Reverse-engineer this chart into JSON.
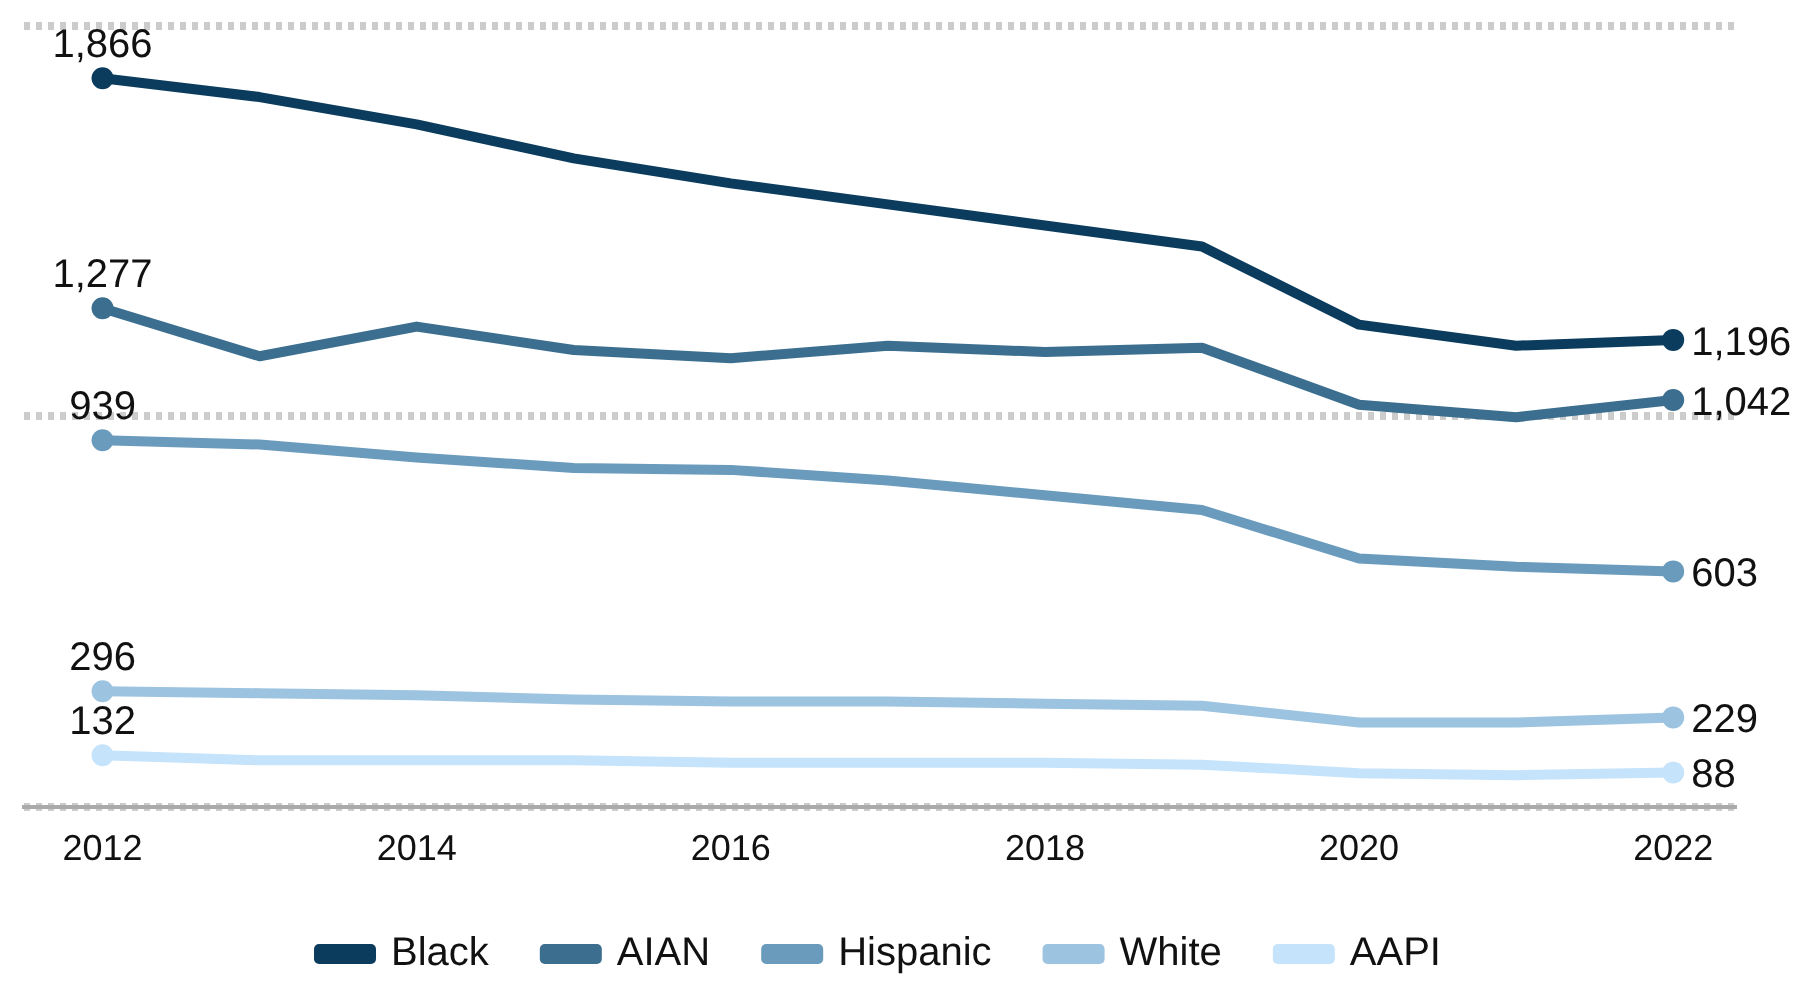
{
  "chart_data": {
    "type": "line",
    "x": [
      2012,
      2013,
      2014,
      2015,
      2016,
      2017,
      2018,
      2019,
      2020,
      2021,
      2022
    ],
    "xlim": [
      2011.5,
      2022.4
    ],
    "xticks": [
      2012,
      2014,
      2016,
      2018,
      2020,
      2022
    ],
    "ylim": [
      0,
      2000
    ],
    "yticks": [
      {
        "value": 0,
        "label": null
      },
      {
        "value": 1000,
        "label": null
      },
      {
        "value": 2000,
        "label": null
      }
    ],
    "tick_labels": "x",
    "grid": "y",
    "legend": "bottom",
    "line_style": "solid",
    "series": [
      {
        "name": "Black",
        "color": "#0b3c5d",
        "values": [
          1866,
          1818,
          1748,
          1661,
          1597,
          1543,
          1489,
          1435,
          1235,
          1181,
          1196
        ],
        "value_labels": [
          "1,866",
          null,
          null,
          null,
          null,
          null,
          null,
          null,
          null,
          null,
          "1,196"
        ]
      },
      {
        "name": "AIAN",
        "color": "#3b6e8f",
        "values": [
          1277,
          1154,
          1230,
          1170,
          1149,
          1181,
          1165,
          1176,
          1030,
          998,
          1042
        ],
        "value_labels": [
          "1,277",
          null,
          null,
          null,
          null,
          null,
          null,
          null,
          null,
          null,
          "1,042"
        ]
      },
      {
        "name": "Hispanic",
        "color": "#6a9bbd",
        "values": [
          939,
          928,
          895,
          868,
          863,
          836,
          798,
          760,
          636,
          615,
          603
        ],
        "value_labels": [
          "939",
          null,
          null,
          null,
          null,
          null,
          null,
          null,
          null,
          null,
          "603"
        ]
      },
      {
        "name": "White",
        "color": "#9cc3e0",
        "values": [
          296,
          291,
          286,
          275,
          270,
          270,
          264,
          259,
          216,
          216,
          229
        ],
        "value_labels": [
          "296",
          null,
          null,
          null,
          null,
          null,
          null,
          null,
          null,
          null,
          "229"
        ]
      },
      {
        "name": "AAPI",
        "color": "#c5e3fb",
        "values": [
          132,
          119,
          119,
          119,
          113,
          113,
          113,
          108,
          86,
          81,
          88
        ],
        "value_labels": [
          "132",
          null,
          null,
          null,
          null,
          null,
          null,
          null,
          null,
          null,
          "88"
        ]
      }
    ]
  }
}
